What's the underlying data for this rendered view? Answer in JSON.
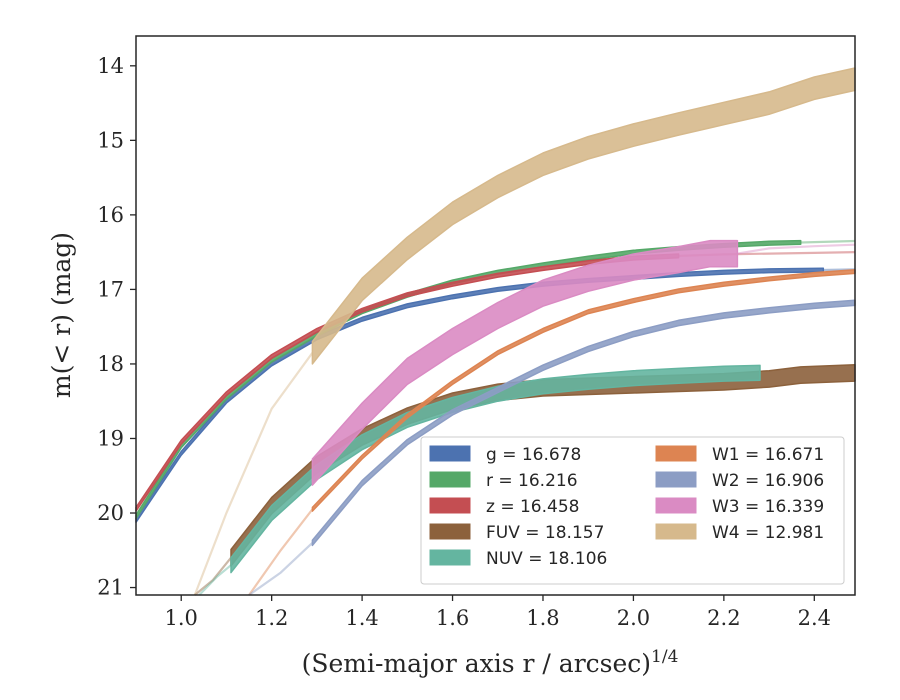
{
  "chart_data": {
    "type": "line",
    "xlabel": "(Semi-major axis r / arcsec)",
    "xlabel_exponent": "1/4",
    "ylabel": "m(< r) (mag)",
    "xlim": [
      0.9,
      2.49
    ],
    "ylim": [
      21.1,
      13.6
    ],
    "y_inverted": true,
    "x_ticks": [
      "1.0",
      "1.2",
      "1.4",
      "1.6",
      "1.8",
      "2.0",
      "2.2",
      "2.4"
    ],
    "y_ticks": [
      "14",
      "15",
      "16",
      "17",
      "18",
      "19",
      "20",
      "21"
    ],
    "grid": false,
    "legend_position": "bottom-right",
    "series": [
      {
        "name": "g",
        "label": "g = 16.678",
        "color": "#4c72b0",
        "width": 0.05,
        "x": [
          0.9,
          1.0,
          1.1,
          1.2,
          1.3,
          1.4,
          1.5,
          1.6,
          1.7,
          1.8,
          1.9,
          2.0,
          2.1,
          2.2,
          2.3,
          2.42
        ],
        "y": [
          20.1,
          19.2,
          18.5,
          18.0,
          17.65,
          17.4,
          17.22,
          17.1,
          17.0,
          16.93,
          16.88,
          16.84,
          16.8,
          16.77,
          16.75,
          16.74
        ],
        "faint": {
          "x": [
            2.42,
            2.49
          ],
          "y": [
            16.74,
            16.73
          ]
        }
      },
      {
        "name": "r",
        "label": "r = 16.216",
        "color": "#55a868",
        "width": 0.05,
        "x": [
          0.9,
          1.0,
          1.1,
          1.2,
          1.3,
          1.4,
          1.5,
          1.6,
          1.7,
          1.8,
          1.9,
          2.0,
          2.1,
          2.2,
          2.3,
          2.37
        ],
        "y": [
          20.05,
          19.1,
          18.45,
          17.95,
          17.6,
          17.3,
          17.08,
          16.9,
          16.77,
          16.67,
          16.58,
          16.5,
          16.45,
          16.41,
          16.38,
          16.37
        ],
        "faint": {
          "x": [
            2.37,
            2.49
          ],
          "y": [
            16.37,
            16.35
          ]
        }
      },
      {
        "name": "z",
        "label": "z = 16.458",
        "color": "#c44e52",
        "width": 0.05,
        "x": [
          0.9,
          1.0,
          1.1,
          1.2,
          1.3,
          1.4,
          1.5,
          1.6,
          1.7,
          1.8,
          1.9,
          2.0,
          2.1
        ],
        "y": [
          19.95,
          19.05,
          18.4,
          17.9,
          17.55,
          17.28,
          17.07,
          16.93,
          16.81,
          16.72,
          16.64,
          16.58,
          16.55
        ],
        "faint": {
          "x": [
            2.1,
            2.2,
            2.3,
            2.4,
            2.49
          ],
          "y": [
            16.55,
            16.53,
            16.52,
            16.51,
            16.5
          ]
        }
      },
      {
        "name": "FUV",
        "label": "FUV = 18.157",
        "color": "#8c613c",
        "width": 0.22,
        "x": [
          1.11,
          1.2,
          1.3,
          1.4,
          1.5,
          1.6,
          1.7,
          1.8,
          1.9,
          2.0,
          2.1,
          2.2,
          2.3,
          2.37,
          2.49
        ],
        "y": [
          20.6,
          19.9,
          19.35,
          18.98,
          18.7,
          18.5,
          18.38,
          18.32,
          18.3,
          18.28,
          18.26,
          18.24,
          18.2,
          18.15,
          18.12
        ],
        "faint": {
          "x": [
            1.03,
            1.07,
            1.11
          ],
          "y": [
            21.1,
            20.9,
            20.6
          ]
        }
      },
      {
        "name": "NUV",
        "label": "NUV = 18.106",
        "color": "#64b5a0",
        "width": 0.2,
        "x": [
          1.11,
          1.2,
          1.3,
          1.4,
          1.5,
          1.6,
          1.7,
          1.8,
          1.9,
          2.0,
          2.1,
          2.2,
          2.28
        ],
        "y": [
          20.7,
          20.0,
          19.45,
          19.05,
          18.75,
          18.55,
          18.4,
          18.3,
          18.24,
          18.19,
          18.16,
          18.13,
          18.12
        ],
        "faint": {
          "x": [
            1.04,
            1.08,
            1.11
          ],
          "y": [
            21.1,
            20.85,
            20.7
          ]
        }
      },
      {
        "name": "W1",
        "label": "W1 = 16.671",
        "color": "#dd8452",
        "width": 0.05,
        "x": [
          1.29,
          1.4,
          1.5,
          1.6,
          1.7,
          1.8,
          1.9,
          2.0,
          2.1,
          2.2,
          2.3,
          2.4,
          2.49
        ],
        "y": [
          19.95,
          19.25,
          18.7,
          18.25,
          17.85,
          17.55,
          17.3,
          17.15,
          17.02,
          16.93,
          16.86,
          16.8,
          16.76
        ],
        "faint": {
          "x": [
            1.15,
            1.22,
            1.29
          ],
          "y": [
            21.1,
            20.5,
            19.95
          ]
        }
      },
      {
        "name": "W2",
        "label": "W2 = 16.906",
        "color": "#8c9dc4",
        "width": 0.07,
        "x": [
          1.29,
          1.4,
          1.5,
          1.6,
          1.7,
          1.8,
          1.9,
          2.0,
          2.1,
          2.2,
          2.3,
          2.4,
          2.49
        ],
        "y": [
          20.4,
          19.6,
          19.05,
          18.65,
          18.35,
          18.05,
          17.8,
          17.6,
          17.45,
          17.35,
          17.28,
          17.22,
          17.18
        ],
        "faint": {
          "x": [
            1.15,
            1.22,
            1.29
          ],
          "y": [
            21.1,
            20.8,
            20.4
          ]
        }
      },
      {
        "name": "W3",
        "label": "W3 = 16.339",
        "color": "#da8bc3",
        "width": 0.35,
        "x": [
          1.29,
          1.4,
          1.5,
          1.6,
          1.7,
          1.8,
          1.9,
          2.0,
          2.1,
          2.17,
          2.23
        ],
        "y": [
          19.45,
          18.7,
          18.1,
          17.7,
          17.35,
          17.05,
          16.85,
          16.7,
          16.6,
          16.52,
          16.52
        ],
        "faint": {
          "x": [
            2.23,
            2.3,
            2.4,
            2.49
          ],
          "y": [
            16.52,
            16.45,
            16.42,
            16.4
          ]
        }
      },
      {
        "name": "W4",
        "label": "W4 = 12.981",
        "color": "#d6b98c",
        "width": 0.3,
        "x": [
          1.29,
          1.4,
          1.5,
          1.6,
          1.7,
          1.8,
          1.9,
          2.0,
          2.1,
          2.2,
          2.3,
          2.4,
          2.49
        ],
        "y": [
          17.85,
          17.0,
          16.45,
          15.98,
          15.62,
          15.32,
          15.1,
          14.93,
          14.78,
          14.64,
          14.5,
          14.3,
          14.18
        ],
        "faint": {
          "x": [
            1.03,
            1.1,
            1.2,
            1.29
          ],
          "y": [
            21.1,
            20.0,
            18.6,
            17.85
          ]
        }
      }
    ]
  }
}
